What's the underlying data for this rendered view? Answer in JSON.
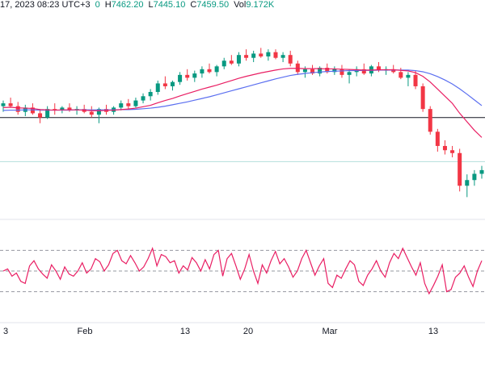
{
  "header": {
    "date_fragment": "17, 2023 08:23 UTC+3",
    "open_fragment": "0",
    "high_label": "H",
    "high_value": "7462.20",
    "low_label": "L",
    "low_value": "7445.10",
    "close_label": "C",
    "close_value": "7459.50",
    "vol_label": "Vol",
    "vol_value": "9.172K"
  },
  "colors": {
    "up": "#089981",
    "down": "#f23645",
    "ma_fast": "#e91e63",
    "ma_slow": "#5b6ff0",
    "rsi": "#e91e63",
    "horizontal_line": "#131722",
    "support_line": "#b2dfdb",
    "dashed": "#9598a1"
  },
  "chart_data": [
    {
      "type": "candlestick",
      "title": "",
      "x_tick_labels": [
        "3",
        "Feb",
        "13",
        "20",
        "Mar",
        "13"
      ],
      "ohlc": [
        [
          7500,
          7520,
          7480,
          7510
        ],
        [
          7510,
          7530,
          7495,
          7500
        ],
        [
          7500,
          7515,
          7470,
          7480
        ],
        [
          7480,
          7505,
          7465,
          7495
        ],
        [
          7495,
          7510,
          7470,
          7475
        ],
        [
          7475,
          7490,
          7440,
          7460
        ],
        [
          7460,
          7500,
          7455,
          7490
        ],
        [
          7490,
          7510,
          7470,
          7485
        ],
        [
          7485,
          7500,
          7475,
          7495
        ],
        [
          7495,
          7510,
          7480,
          7485
        ],
        [
          7485,
          7500,
          7470,
          7490
        ],
        [
          7490,
          7505,
          7475,
          7480
        ],
        [
          7480,
          7500,
          7460,
          7470
        ],
        [
          7470,
          7495,
          7440,
          7490
        ],
        [
          7490,
          7505,
          7470,
          7480
        ],
        [
          7480,
          7500,
          7470,
          7495
        ],
        [
          7495,
          7520,
          7485,
          7510
        ],
        [
          7510,
          7525,
          7490,
          7500
        ],
        [
          7500,
          7530,
          7495,
          7520
        ],
        [
          7520,
          7545,
          7510,
          7535
        ],
        [
          7535,
          7560,
          7520,
          7550
        ],
        [
          7550,
          7590,
          7540,
          7580
        ],
        [
          7580,
          7605,
          7560,
          7570
        ],
        [
          7570,
          7590,
          7555,
          7585
        ],
        [
          7585,
          7620,
          7575,
          7610
        ],
        [
          7610,
          7630,
          7590,
          7600
        ],
        [
          7600,
          7625,
          7585,
          7615
        ],
        [
          7615,
          7640,
          7600,
          7630
        ],
        [
          7630,
          7650,
          7615,
          7620
        ],
        [
          7620,
          7645,
          7605,
          7640
        ],
        [
          7640,
          7670,
          7630,
          7660
        ],
        [
          7660,
          7680,
          7645,
          7650
        ],
        [
          7650,
          7690,
          7640,
          7680
        ],
        [
          7680,
          7700,
          7660,
          7670
        ],
        [
          7670,
          7695,
          7655,
          7685
        ],
        [
          7685,
          7705,
          7670,
          7675
        ],
        [
          7675,
          7700,
          7660,
          7690
        ],
        [
          7690,
          7700,
          7665,
          7670
        ],
        [
          7670,
          7690,
          7655,
          7680
        ],
        [
          7680,
          7695,
          7640,
          7650
        ],
        [
          7650,
          7660,
          7610,
          7620
        ],
        [
          7620,
          7640,
          7600,
          7630
        ],
        [
          7630,
          7645,
          7610,
          7615
        ],
        [
          7615,
          7640,
          7605,
          7635
        ],
        [
          7635,
          7650,
          7615,
          7620
        ],
        [
          7620,
          7640,
          7610,
          7630
        ],
        [
          7630,
          7645,
          7600,
          7610
        ],
        [
          7610,
          7630,
          7580,
          7620
        ],
        [
          7620,
          7640,
          7605,
          7630
        ],
        [
          7630,
          7650,
          7610,
          7615
        ],
        [
          7615,
          7645,
          7605,
          7640
        ],
        [
          7640,
          7655,
          7620,
          7625
        ],
        [
          7625,
          7640,
          7610,
          7630
        ],
        [
          7630,
          7645,
          7615,
          7620
        ],
        [
          7620,
          7635,
          7595,
          7600
        ],
        [
          7600,
          7620,
          7570,
          7610
        ],
        [
          7610,
          7625,
          7560,
          7570
        ],
        [
          7570,
          7580,
          7480,
          7490
        ],
        [
          7490,
          7500,
          7400,
          7410
        ],
        [
          7410,
          7420,
          7340,
          7360
        ],
        [
          7360,
          7380,
          7330,
          7345
        ],
        [
          7345,
          7360,
          7320,
          7335
        ],
        [
          7335,
          7350,
          7200,
          7220
        ],
        [
          7220,
          7260,
          7180,
          7240
        ],
        [
          7240,
          7275,
          7220,
          7262
        ],
        [
          7262,
          7290,
          7245,
          7275
        ]
      ],
      "ma_fast": [
        7495,
        7496,
        7494,
        7493,
        7492,
        7488,
        7487,
        7486,
        7487,
        7487,
        7487,
        7486,
        7484,
        7484,
        7485,
        7486,
        7488,
        7490,
        7493,
        7498,
        7503,
        7512,
        7520,
        7527,
        7536,
        7544,
        7552,
        7560,
        7567,
        7574,
        7582,
        7590,
        7598,
        7605,
        7611,
        7617,
        7622,
        7627,
        7631,
        7633,
        7633,
        7632,
        7632,
        7632,
        7631,
        7631,
        7630,
        7629,
        7628,
        7627,
        7627,
        7628,
        7628,
        7628,
        7626,
        7624,
        7618,
        7605,
        7585,
        7560,
        7535,
        7510,
        7475,
        7445,
        7415,
        7390
      ],
      "ma_slow": [
        7485,
        7486,
        7486,
        7487,
        7487,
        7486,
        7486,
        7486,
        7486,
        7486,
        7487,
        7487,
        7487,
        7487,
        7487,
        7487,
        7488,
        7488,
        7489,
        7491,
        7493,
        7496,
        7500,
        7505,
        7510,
        7515,
        7521,
        7527,
        7533,
        7540,
        7547,
        7554,
        7561,
        7568,
        7575,
        7582,
        7589,
        7596,
        7602,
        7608,
        7612,
        7615,
        7618,
        7620,
        7622,
        7623,
        7624,
        7625,
        7625,
        7626,
        7626,
        7627,
        7627,
        7627,
        7627,
        7627,
        7625,
        7621,
        7614,
        7604,
        7592,
        7578,
        7561,
        7542,
        7522,
        7502
      ],
      "horizontal_level": 7460,
      "support_level": 7305
    },
    {
      "type": "line",
      "title": "",
      "name": "",
      "x_tick_labels": [
        "3",
        "Feb",
        "13",
        "20",
        "Mar",
        "13"
      ],
      "ylim": [
        0,
        100
      ],
      "dashed_levels": [
        70,
        50,
        30
      ],
      "values": [
        50,
        52,
        45,
        48,
        40,
        38,
        55,
        60,
        52,
        47,
        43,
        56,
        50,
        42,
        54,
        47,
        45,
        50,
        58,
        48,
        52,
        62,
        59,
        50,
        56,
        67,
        70,
        60,
        57,
        65,
        58,
        50,
        54,
        62,
        72,
        55,
        66,
        64,
        58,
        60,
        48,
        55,
        51,
        63,
        58,
        50,
        61,
        52,
        66,
        70,
        45,
        62,
        67,
        55,
        42,
        52,
        66,
        50,
        38,
        56,
        48,
        60,
        69,
        57,
        62,
        54,
        44,
        50,
        62,
        70,
        58,
        46,
        55,
        62,
        38,
        34,
        46,
        43,
        52,
        60,
        56,
        40,
        36,
        46,
        52,
        60,
        50,
        44,
        58,
        67,
        62,
        72,
        63,
        54,
        46,
        58,
        38,
        28,
        36,
        45,
        56,
        30,
        32,
        44,
        48,
        55,
        44,
        35,
        50,
        60
      ]
    }
  ]
}
